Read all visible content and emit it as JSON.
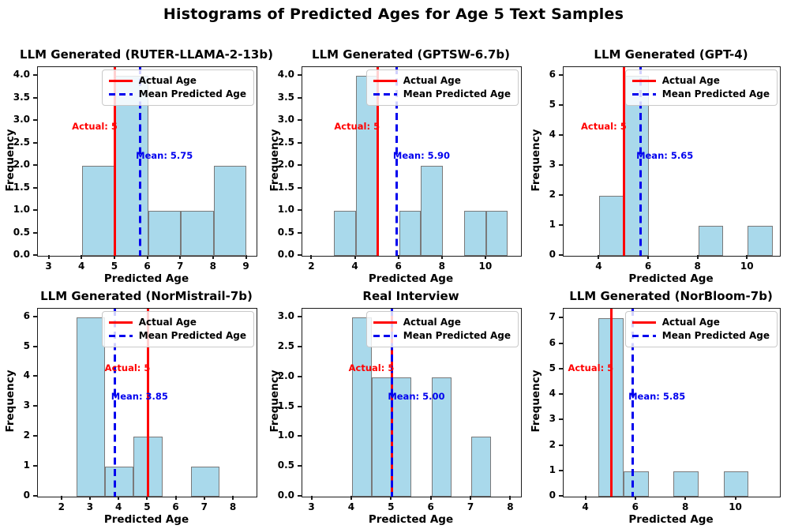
{
  "figure": {
    "title": "Histograms of Predicted Ages for Age 5 Text Samples"
  },
  "legend": {
    "actual_label": "Actual Age",
    "mean_label": "Mean Predicted Age"
  },
  "colors": {
    "bar_fill": "#A9D9EB",
    "bar_edge": "#7A7A7A",
    "actual_line": "#FF0000",
    "mean_line": "#0000EE",
    "actual_text": "#FF0000",
    "mean_text": "#0000EE"
  },
  "chart_data": [
    {
      "type": "bar",
      "title": "LLM Generated (RUTER-LLAMA-2-13b)",
      "xlabel": "Predicted Age",
      "ylabel": "Frequency",
      "xlim": [
        2.65,
        9.3
      ],
      "ylim": [
        0,
        4.2
      ],
      "xticks": [
        3,
        4,
        5,
        6,
        7,
        8,
        9
      ],
      "yticks": [
        0,
        0.5,
        1,
        1.5,
        2,
        2.5,
        3,
        3.5,
        4
      ],
      "xtick_decimals": 0,
      "ytick_decimals": 1,
      "bars": [
        {
          "x0": 4,
          "x1": 5,
          "count": 2
        },
        {
          "x0": 5,
          "x1": 6,
          "count": 4
        },
        {
          "x0": 6,
          "x1": 7,
          "count": 1
        },
        {
          "x0": 7,
          "x1": 8,
          "count": 1
        },
        {
          "x0": 8,
          "x1": 9,
          "count": 2
        }
      ],
      "actual_age": 5,
      "mean_predicted_age": 5.75,
      "annotations": {
        "actual": "Actual: 5",
        "mean": "Mean: 5.75"
      }
    },
    {
      "type": "bar",
      "title": "LLM Generated (GPTSW-6.7b)",
      "xlabel": "Predicted Age",
      "ylabel": "Frequency",
      "xlim": [
        1.55,
        11.6
      ],
      "ylim": [
        0,
        4.2
      ],
      "xticks": [
        2,
        4,
        6,
        8,
        10
      ],
      "yticks": [
        0,
        0.5,
        1,
        1.5,
        2,
        2.5,
        3,
        3.5,
        4
      ],
      "xtick_decimals": 0,
      "ytick_decimals": 1,
      "bars": [
        {
          "x0": 3,
          "x1": 4,
          "count": 1
        },
        {
          "x0": 4,
          "x1": 5,
          "count": 4
        },
        {
          "x0": 6,
          "x1": 7,
          "count": 1
        },
        {
          "x0": 7,
          "x1": 8,
          "count": 2
        },
        {
          "x0": 9,
          "x1": 10,
          "count": 1
        },
        {
          "x0": 10,
          "x1": 11,
          "count": 1
        }
      ],
      "actual_age": 5,
      "mean_predicted_age": 5.9,
      "annotations": {
        "actual": "Actual: 5",
        "mean": "Mean: 5.90"
      }
    },
    {
      "type": "bar",
      "title": "LLM Generated (GPT-4)",
      "xlabel": "Predicted Age",
      "ylabel": "Frequency",
      "xlim": [
        2.55,
        11.3
      ],
      "ylim": [
        0,
        6.28
      ],
      "xticks": [
        4,
        6,
        8,
        10
      ],
      "yticks": [
        0,
        1,
        2,
        3,
        4,
        5,
        6
      ],
      "xtick_decimals": 0,
      "ytick_decimals": 0,
      "bars": [
        {
          "x0": 4,
          "x1": 5,
          "count": 2
        },
        {
          "x0": 5,
          "x1": 6,
          "count": 6
        },
        {
          "x0": 8,
          "x1": 9,
          "count": 1
        },
        {
          "x0": 10,
          "x1": 11,
          "count": 1
        }
      ],
      "actual_age": 5,
      "mean_predicted_age": 5.65,
      "annotations": {
        "actual": "Actual: 5",
        "mean": "Mean: 5.65"
      }
    },
    {
      "type": "bar",
      "title": "LLM Generated (NorMistrail-7b)",
      "xlabel": "Predicted Age",
      "ylabel": "Frequency",
      "xlim": [
        1.15,
        8.8
      ],
      "ylim": [
        0,
        6.28
      ],
      "xticks": [
        2,
        3,
        4,
        5,
        6,
        7,
        8
      ],
      "yticks": [
        0,
        1,
        2,
        3,
        4,
        5,
        6
      ],
      "xtick_decimals": 0,
      "ytick_decimals": 0,
      "bars": [
        {
          "x0": 2.5,
          "x1": 3.5,
          "count": 6
        },
        {
          "x0": 3.5,
          "x1": 4.5,
          "count": 1
        },
        {
          "x0": 4.5,
          "x1": 5.5,
          "count": 2
        },
        {
          "x0": 6.5,
          "x1": 7.5,
          "count": 1
        }
      ],
      "actual_age": 5,
      "mean_predicted_age": 3.85,
      "annotations": {
        "actual": "Actual: 5",
        "mean": "Mean: 3.85"
      }
    },
    {
      "type": "bar",
      "title": "Real Interview",
      "xlabel": "Predicted Age",
      "ylabel": "Frequency",
      "xlim": [
        2.75,
        8.25
      ],
      "ylim": [
        0,
        3.15
      ],
      "xticks": [
        3,
        4,
        5,
        6,
        7,
        8
      ],
      "yticks": [
        0,
        0.5,
        1,
        1.5,
        2,
        2.5,
        3
      ],
      "xtick_decimals": 0,
      "ytick_decimals": 1,
      "bars": [
        {
          "x0": 4,
          "x1": 4.5,
          "count": 3
        },
        {
          "x0": 4.5,
          "x1": 5,
          "count": 2
        },
        {
          "x0": 5,
          "x1": 5.5,
          "count": 2
        },
        {
          "x0": 6,
          "x1": 6.5,
          "count": 2
        },
        {
          "x0": 7,
          "x1": 7.5,
          "count": 1
        }
      ],
      "actual_age": 5,
      "mean_predicted_age": 5.0,
      "annotations": {
        "actual": "Actual: 5",
        "mean": "Mean: 5.00"
      }
    },
    {
      "type": "bar",
      "title": "LLM Generated (NorBloom-7b)",
      "xlabel": "Predicted Age",
      "ylabel": "Frequency",
      "xlim": [
        3.1,
        11.75
      ],
      "ylim": [
        0,
        7.38
      ],
      "xticks": [
        4,
        6,
        8,
        10
      ],
      "yticks": [
        0,
        1,
        2,
        3,
        4,
        5,
        6,
        7
      ],
      "xtick_decimals": 0,
      "ytick_decimals": 0,
      "bars": [
        {
          "x0": 4.5,
          "x1": 5.5,
          "count": 7
        },
        {
          "x0": 5.5,
          "x1": 6.5,
          "count": 1
        },
        {
          "x0": 7.5,
          "x1": 8.5,
          "count": 1
        },
        {
          "x0": 9.5,
          "x1": 10.5,
          "count": 1
        }
      ],
      "actual_age": 5,
      "mean_predicted_age": 5.85,
      "annotations": {
        "actual": "Actual: 5",
        "mean": "Mean: 5.85"
      }
    }
  ]
}
